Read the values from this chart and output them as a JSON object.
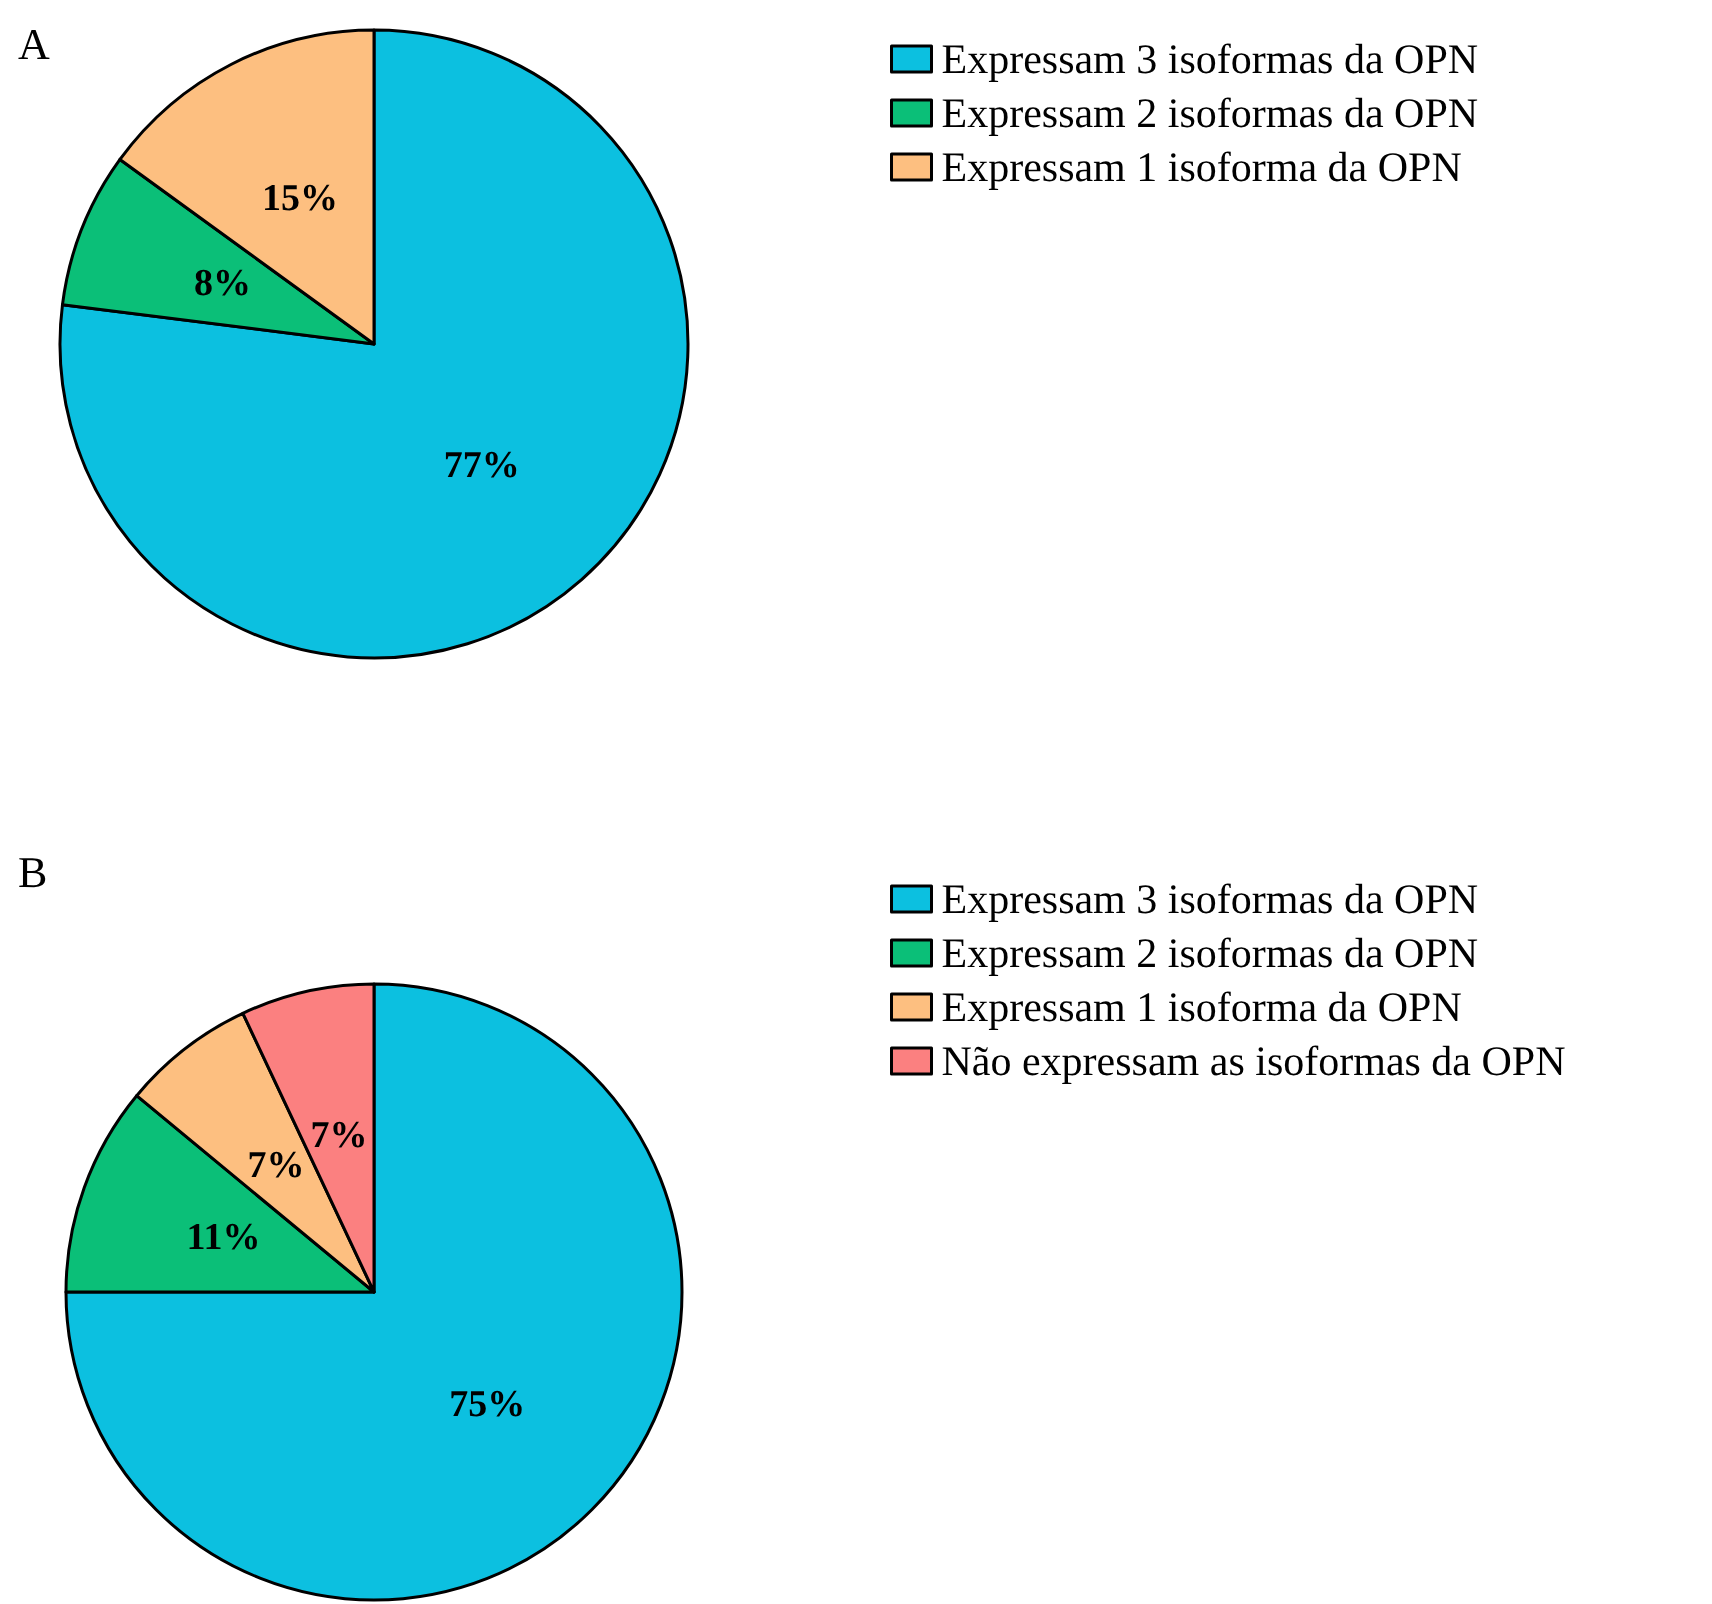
{
  "chart_data": [
    {
      "type": "pie",
      "title": "A",
      "categories": [
        "Expressam 3 isoformas da OPN",
        "Expressam 2 isoformas da OPN",
        "Expressam 1 isoforma da OPN"
      ],
      "values": [
        77,
        8,
        15
      ],
      "value_labels": [
        "77%",
        "8%",
        "15%"
      ],
      "colors": [
        "#0cc0e0",
        "#0bbf78",
        "#fdbf80"
      ],
      "legend": "top right"
    },
    {
      "type": "pie",
      "title": "B",
      "categories": [
        "Expressam 3 isoformas da OPN",
        "Expressam 2 isoformas da OPN",
        "Expressam 1 isoforma da OPN",
        "Não expressam as isoformas da OPN"
      ],
      "values": [
        75,
        11,
        7,
        7
      ],
      "value_labels": [
        "75%",
        "11%",
        "7%",
        "7%"
      ],
      "colors": [
        "#0cc0e0",
        "#0bbf78",
        "#fdbf80",
        "#fb8080"
      ],
      "legend": "top right"
    }
  ]
}
